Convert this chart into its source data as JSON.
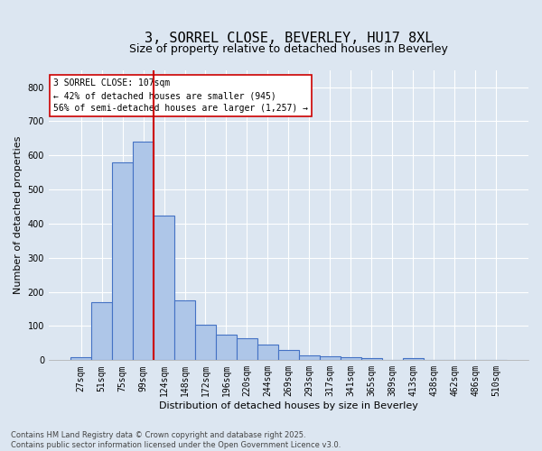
{
  "title_line1": "3, SORREL CLOSE, BEVERLEY, HU17 8XL",
  "title_line2": "Size of property relative to detached houses in Beverley",
  "xlabel": "Distribution of detached houses by size in Beverley",
  "ylabel": "Number of detached properties",
  "categories": [
    "27sqm",
    "51sqm",
    "75sqm",
    "99sqm",
    "124sqm",
    "148sqm",
    "172sqm",
    "196sqm",
    "220sqm",
    "244sqm",
    "269sqm",
    "293sqm",
    "317sqm",
    "341sqm",
    "365sqm",
    "389sqm",
    "413sqm",
    "438sqm",
    "462sqm",
    "486sqm",
    "510sqm"
  ],
  "values": [
    10,
    170,
    580,
    640,
    425,
    175,
    105,
    75,
    65,
    45,
    30,
    15,
    12,
    8,
    5,
    0,
    5,
    0,
    0,
    0,
    0
  ],
  "bar_color": "#aec6e8",
  "bar_edge_color": "#4472c4",
  "vline_x": 3.5,
  "vline_color": "#cc0000",
  "annotation_text": "3 SORREL CLOSE: 107sqm\n← 42% of detached houses are smaller (945)\n56% of semi-detached houses are larger (1,257) →",
  "annotation_box_color": "#ffffff",
  "annotation_box_edge": "#cc0000",
  "ylim": [
    0,
    850
  ],
  "yticks": [
    0,
    100,
    200,
    300,
    400,
    500,
    600,
    700,
    800
  ],
  "background_color": "#dce6f1",
  "grid_color": "#ffffff",
  "footer_text": "Contains HM Land Registry data © Crown copyright and database right 2025.\nContains public sector information licensed under the Open Government Licence v3.0.",
  "title_fontsize": 11,
  "subtitle_fontsize": 9,
  "axis_label_fontsize": 8,
  "tick_fontsize": 7,
  "annotation_fontsize": 7,
  "footer_fontsize": 6
}
